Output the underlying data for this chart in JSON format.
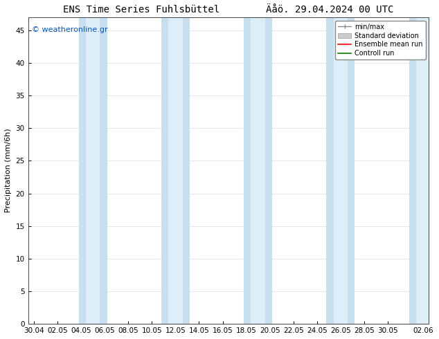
{
  "title": "ENS Time Series Fuhlsbüttel",
  "date_str": "Äåö. 29.04.2024 00 UTC",
  "ylabel": "Precipitation (mm/6h)",
  "watermark": "© weatheronline.gr",
  "watermark_color": "#0055cc",
  "ylim": [
    0,
    47
  ],
  "yticks": [
    0,
    5,
    10,
    15,
    20,
    25,
    30,
    35,
    40,
    45
  ],
  "background_color": "#ffffff",
  "plot_bg_color": "#ffffff",
  "outer_band_color": "#c8dff0",
  "inner_band_color": "#ddeef8",
  "ensemble_mean_color": "#ff0000",
  "control_run_color": "#008000",
  "xtick_labels": [
    "30.04",
    "02.05",
    "04.05",
    "06.05",
    "08.05",
    "10.05",
    "12.05",
    "14.05",
    "16.05",
    "18.05",
    "20.05",
    "22.05",
    "24.05",
    "26.05",
    "28.05",
    "30.05",
    "02.06"
  ],
  "xtick_pos": [
    0,
    2,
    4,
    6,
    8,
    10,
    12,
    14,
    16,
    18,
    20,
    22,
    24,
    26,
    28,
    30,
    33
  ],
  "x_min": -0.5,
  "x_max": 33.5,
  "band_centers": [
    5.0,
    12.0,
    19.0,
    26.0,
    33.0
  ],
  "outer_half": 1.2,
  "inner_half": 0.6,
  "legend_labels": [
    "min/max",
    "Standard deviation",
    "Ensemble mean run",
    "Controll run"
  ],
  "title_fontsize": 10,
  "axis_fontsize": 8,
  "tick_fontsize": 7.5,
  "legend_fontsize": 7,
  "watermark_fontsize": 8
}
